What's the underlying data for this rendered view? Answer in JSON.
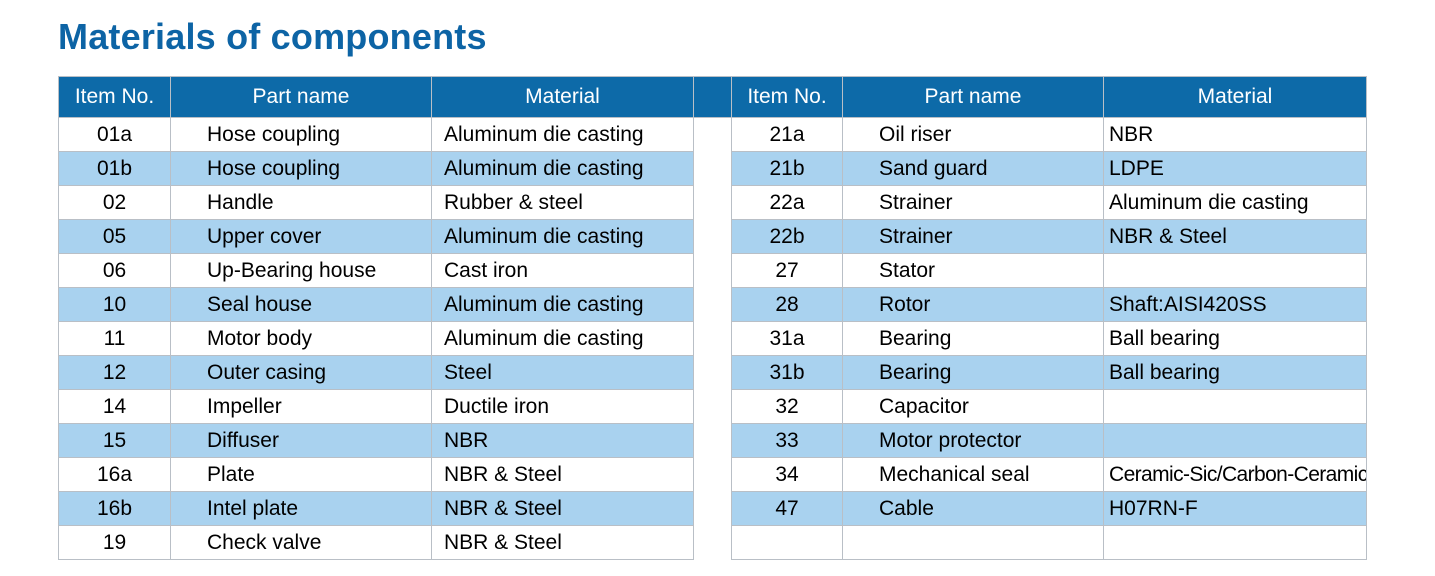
{
  "title": "Materials of components",
  "headers": {
    "item_no": "Item No.",
    "part_name": "Part name",
    "material": "Material"
  },
  "left_rows": [
    {
      "item": "01a",
      "part": "Hose coupling",
      "material": "Aluminum die casting"
    },
    {
      "item": "01b",
      "part": "Hose coupling",
      "material": "Aluminum die casting"
    },
    {
      "item": "02",
      "part": "Handle",
      "material": "Rubber & steel"
    },
    {
      "item": "05",
      "part": "Upper cover",
      "material": "Aluminum die casting"
    },
    {
      "item": "06",
      "part": "Up-Bearing house",
      "material": "Cast iron"
    },
    {
      "item": "10",
      "part": "Seal house",
      "material": "Aluminum die casting"
    },
    {
      "item": "11",
      "part": "Motor body",
      "material": "Aluminum die casting"
    },
    {
      "item": "12",
      "part": "Outer casing",
      "material": "Steel"
    },
    {
      "item": "14",
      "part": "Impeller",
      "material": "Ductile iron"
    },
    {
      "item": "15",
      "part": "Diffuser",
      "material": "NBR"
    },
    {
      "item": "16a",
      "part": "Plate",
      "material": "NBR & Steel"
    },
    {
      "item": "16b",
      "part": "Intel plate",
      "material": "NBR & Steel"
    },
    {
      "item": "19",
      "part": "Check valve",
      "material": "NBR & Steel"
    }
  ],
  "right_rows": [
    {
      "item": "21a",
      "part": "Oil riser",
      "material": "NBR"
    },
    {
      "item": "21b",
      "part": "Sand guard",
      "material": "LDPE"
    },
    {
      "item": "22a",
      "part": "Strainer",
      "material": "Aluminum die casting"
    },
    {
      "item": "22b",
      "part": "Strainer",
      "material": "NBR & Steel"
    },
    {
      "item": "27",
      "part": "Stator",
      "material": ""
    },
    {
      "item": "28",
      "part": "Rotor",
      "material": "Shaft:AISI420SS"
    },
    {
      "item": "31a",
      "part": "Bearing",
      "material": "Ball bearing"
    },
    {
      "item": "31b",
      "part": "Bearing",
      "material": "Ball bearing"
    },
    {
      "item": "32",
      "part": "Capacitor",
      "material": ""
    },
    {
      "item": "33",
      "part": "Motor protector",
      "material": ""
    },
    {
      "item": "34",
      "part": "Mechanical seal",
      "material": "Ceramic-Sic/Carbon-Ceramic"
    },
    {
      "item": "47",
      "part": "Cable",
      "material": "H07RN-F"
    },
    {
      "item": "",
      "part": "",
      "material": ""
    }
  ],
  "colors": {
    "title": "#0d64a5",
    "header_bg": "#0d6aa8",
    "alt_row_bg": "#a9d2ef",
    "border": "#b9bfc6"
  }
}
